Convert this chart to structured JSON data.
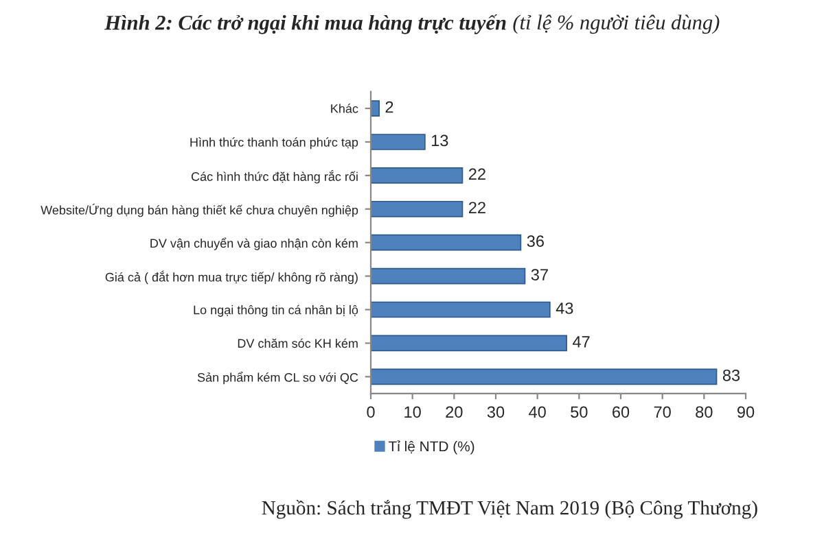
{
  "chart_data": {
    "type": "bar",
    "orientation": "horizontal",
    "title": "Hình 2: Các trở ngại khi mua hàng trực tuyến",
    "subtitle": "(tỉ lệ % người tiêu dùng)",
    "categories": [
      "Khác",
      "Hình thức thanh toán phức tạp",
      "Các hình thức đặt hàng rắc rối",
      "Website/Ứng dụng bán hàng thiết kế chưa chuyên nghiệp",
      "DV vận chuyển và giao nhận còn kém",
      "Giá cả ( đắt hơn mua trực tiếp/ không rõ ràng)",
      "Lo ngại thông tin cá nhân bị lộ",
      "DV chăm sóc KH kém",
      "Sản phẩm kém CL so với QC"
    ],
    "series": [
      {
        "name": "Tỉ lệ NTD (%)",
        "color": "#4f81bd",
        "values": [
          2,
          13,
          22,
          22,
          36,
          37,
          43,
          47,
          83
        ]
      }
    ],
    "xlim": [
      0,
      90
    ],
    "xticks": [
      0,
      10,
      20,
      30,
      40,
      50,
      60,
      70,
      80,
      90
    ],
    "data_labels": true,
    "grid": false,
    "legend": "bottom left",
    "annotations": [
      "Nguồn: Sách trắng TMĐT Việt Nam 2019 (Bộ Công Thương)"
    ]
  }
}
